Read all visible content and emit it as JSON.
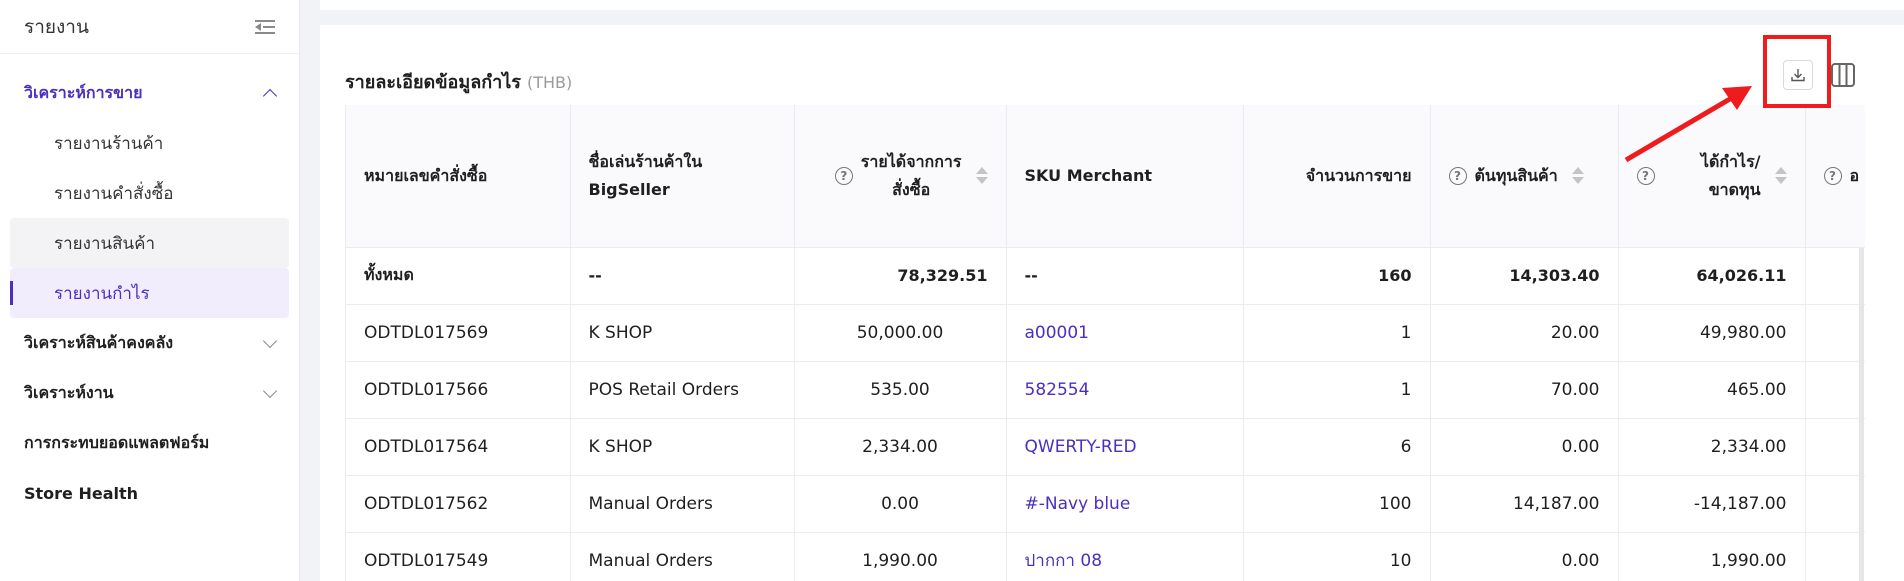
{
  "sidebar": {
    "title": "รายงาน",
    "groups": [
      {
        "label": "วิเคราะห์การขาย",
        "expanded": true
      },
      {
        "label": "วิเคราะห์สินค้าคงคลัง"
      },
      {
        "label": "วิเคราะห์งาน"
      },
      {
        "label": "การกระทบยอดแพลตฟอร์ม"
      },
      {
        "label": "Store Health"
      }
    ],
    "items": [
      {
        "label": "รายงานร้านค้า"
      },
      {
        "label": "รายงานคำสั่งซื้อ"
      },
      {
        "label": "รายงานสินค้า"
      },
      {
        "label": "รายงานกำไร"
      }
    ]
  },
  "card": {
    "title": "รายละเอียดข้อมูลกำไร",
    "unit": "(THB)"
  },
  "table": {
    "headers": [
      "หมายเลขคำสั่งซื้อ",
      "ชื่อเล่นร้านค้าใน BigSeller",
      "รายได้จากการสั่งซื้อ",
      "SKU Merchant",
      "จำนวนการขาย",
      "ต้นทุนสินค้า",
      "ได้กำไร/ขาดทุน",
      "อ"
    ],
    "header_lines": {
      "store": [
        "ชื่อเล่นร้านค้าใน",
        "BigSeller"
      ],
      "revenue": [
        "รายได้จากการ",
        "สั่งซื้อ"
      ],
      "profit": [
        "ได้กำไร/",
        "ขาดทุน"
      ]
    },
    "total": {
      "order": "ทั้งหมด",
      "store": "--",
      "revenue": "78,329.51",
      "sku": "--",
      "qty": "160",
      "cost": "14,303.40",
      "profit": "64,026.11"
    },
    "rows": [
      {
        "order": "ODTDL017569",
        "store": "K SHOP",
        "revenue": "50,000.00",
        "sku": "a00001",
        "qty": "1",
        "cost": "20.00",
        "profit": "49,980.00"
      },
      {
        "order": "ODTDL017566",
        "store": "POS Retail Orders",
        "revenue": "535.00",
        "sku": "582554",
        "qty": "1",
        "cost": "70.00",
        "profit": "465.00"
      },
      {
        "order": "ODTDL017564",
        "store": "K SHOP",
        "revenue": "2,334.00",
        "sku": "QWERTY-RED",
        "qty": "6",
        "cost": "0.00",
        "profit": "2,334.00"
      },
      {
        "order": "ODTDL017562",
        "store": "Manual Orders",
        "revenue": "0.00",
        "sku": "#-Navy blue",
        "qty": "100",
        "cost": "14,187.00",
        "profit": "-14,187.00"
      },
      {
        "order": "ODTDL017549",
        "store": "Manual Orders",
        "revenue": "1,990.00",
        "sku": "ปากกา 08",
        "qty": "10",
        "cost": "0.00",
        "profit": "1,990.00"
      }
    ]
  },
  "icons": {
    "download": "download-icon",
    "columns": "columns-icon",
    "help": "help-circle-icon",
    "sort": "sort-icon",
    "collapse": "menu-collapse-icon"
  },
  "colors": {
    "accent": "#4b2fbf",
    "annotation": "#ee1c1c"
  }
}
